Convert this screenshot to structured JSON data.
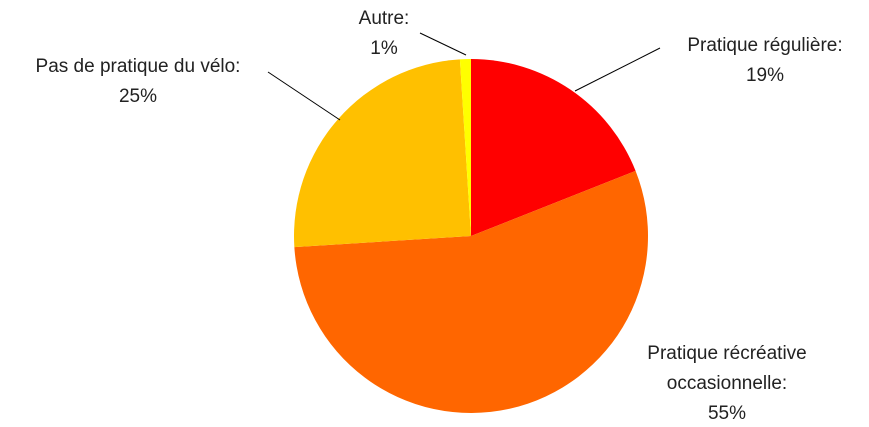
{
  "chart_data": {
    "type": "pie",
    "categories": [
      "Pratique régulière:",
      "Pratique récréative occasionnelle:",
      "Pas de pratique du vélo:",
      "Autre:"
    ],
    "values": [
      19,
      55,
      25,
      1
    ],
    "value_labels": [
      "19%",
      "55%",
      "25%",
      "1%"
    ],
    "colors": [
      "#ff0000",
      "#ff6600",
      "#ffc000",
      "#ffff00"
    ]
  }
}
